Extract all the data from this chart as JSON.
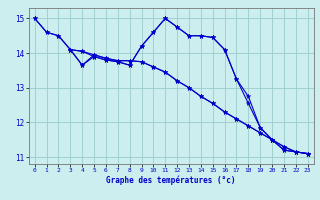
{
  "title": "Graphe des températures (°c)",
  "xlim": [
    -0.5,
    23.5
  ],
  "ylim": [
    10.8,
    15.3
  ],
  "yticks": [
    11,
    12,
    13,
    14,
    15
  ],
  "xticks": [
    0,
    1,
    2,
    3,
    4,
    5,
    6,
    7,
    8,
    9,
    10,
    11,
    12,
    13,
    14,
    15,
    16,
    17,
    18,
    19,
    20,
    21,
    22,
    23
  ],
  "background_color": "#cceeee",
  "line_color": "#0000cc",
  "grid_color": "#99cccc",
  "lines": [
    {
      "x": [
        0,
        1,
        2,
        3,
        4,
        5,
        6,
        7,
        8,
        9,
        10,
        11,
        12,
        13,
        14,
        15,
        16,
        17,
        18,
        19,
        20,
        21,
        22,
        23
      ],
      "y": [
        15.0,
        14.6,
        14.5,
        14.1,
        14.05,
        13.9,
        13.8,
        13.75,
        13.65,
        14.2,
        14.6,
        15.0,
        14.75,
        14.5,
        14.5,
        14.45,
        14.1,
        13.25,
        12.75,
        11.85,
        11.5,
        11.2,
        11.15,
        11.1
      ]
    },
    {
      "x": [
        0,
        1,
        2,
        3,
        4,
        5,
        6,
        7,
        8,
        9,
        10,
        11,
        12,
        13,
        14,
        15,
        16,
        17,
        18,
        19,
        20,
        21,
        22,
        23
      ],
      "y": [
        15.0,
        14.6,
        14.5,
        14.1,
        13.65,
        13.9,
        13.8,
        13.75,
        13.65,
        14.2,
        14.6,
        15.0,
        14.75,
        14.5,
        14.5,
        14.45,
        14.1,
        13.25,
        12.55,
        11.85,
        11.5,
        11.2,
        11.15,
        11.1
      ]
    },
    {
      "x": [
        3,
        4,
        5,
        6,
        7,
        8,
        9,
        10,
        11,
        12,
        13,
        14,
        15,
        16,
        17,
        18,
        19,
        20,
        21,
        22,
        23
      ],
      "y": [
        14.1,
        14.05,
        13.95,
        13.85,
        13.78,
        13.78,
        13.75,
        13.6,
        13.45,
        13.2,
        13.0,
        12.75,
        12.55,
        12.3,
        12.1,
        11.9,
        11.7,
        11.5,
        11.3,
        11.15,
        11.1
      ]
    },
    {
      "x": [
        3,
        4,
        5,
        6,
        7,
        8,
        9,
        10,
        11,
        12,
        13,
        14,
        15,
        16,
        17,
        18,
        19,
        20,
        21,
        22,
        23
      ],
      "y": [
        14.1,
        13.65,
        13.95,
        13.85,
        13.78,
        13.78,
        13.75,
        13.6,
        13.45,
        13.2,
        13.0,
        12.75,
        12.55,
        12.3,
        12.1,
        11.9,
        11.7,
        11.5,
        11.3,
        11.15,
        11.1
      ]
    }
  ]
}
